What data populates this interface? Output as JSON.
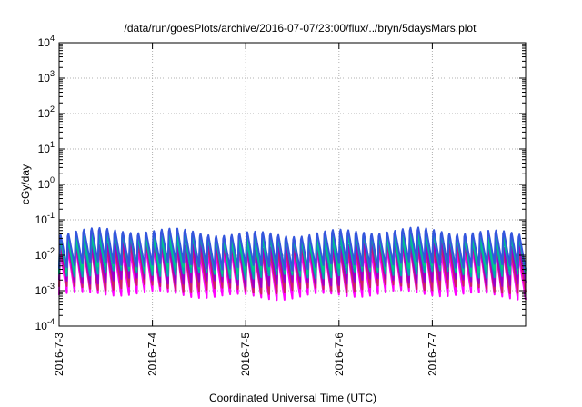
{
  "chart_data": {
    "type": "line",
    "title": "/data/run/goesPlots/archive/2016-07-07/23:00/flux/../bryn/5daysMars.plot",
    "xlabel": "Coordinated Universal Time (UTC)",
    "ylabel": "cGy/day",
    "yscale": "log",
    "ylim": [
      0.0001,
      10000
    ],
    "xlim": [
      "2016-07-03 00:00",
      "2016-07-08 00:00"
    ],
    "x_ticks": [
      "2016-7-3",
      "2016-7-4",
      "2016-7-5",
      "2016-7-6",
      "2016-7-7"
    ],
    "y_ticks": [
      {
        "base": "10",
        "exp": "-4",
        "value": 0.0001
      },
      {
        "base": "10",
        "exp": "-3",
        "value": 0.001
      },
      {
        "base": "10",
        "exp": "-2",
        "value": 0.01
      },
      {
        "base": "10",
        "exp": "-1",
        "value": 0.1
      },
      {
        "base": "10",
        "exp": "0",
        "value": 1
      },
      {
        "base": "10",
        "exp": "1",
        "value": 10
      },
      {
        "base": "10",
        "exp": "2",
        "value": 100
      },
      {
        "base": "10",
        "exp": "3",
        "value": 1000
      },
      {
        "base": "10",
        "exp": "4",
        "value": 10000
      }
    ],
    "grid": true,
    "legend": "none",
    "cycles_per_day": 12,
    "series": [
      {
        "color": "#ff00ff",
        "peak": 0.014,
        "trough": 0.00075
      },
      {
        "color": "#cc2266",
        "peak": 0.02,
        "trough": 0.0011
      },
      {
        "color": "#9900cc",
        "peak": 0.026,
        "trough": 0.0017
      },
      {
        "color": "#00aaaa",
        "peak": 0.035,
        "trough": 0.0028
      },
      {
        "color": "#00cc88",
        "peak": 0.042,
        "trough": 0.0038
      },
      {
        "color": "#3355dd",
        "peak": 0.055,
        "trough": 0.005
      }
    ]
  }
}
